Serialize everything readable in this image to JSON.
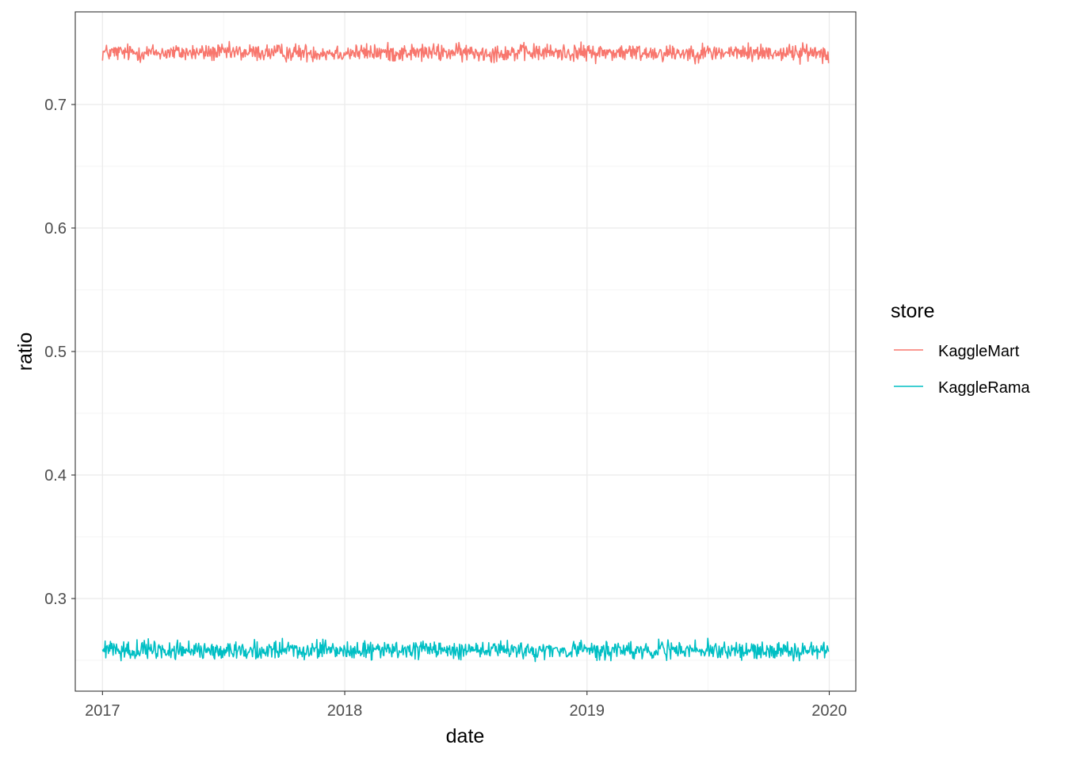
{
  "chart_data": {
    "type": "line",
    "xlabel": "date",
    "ylabel": "ratio",
    "xlim": [
      "2016-11-21",
      "2020-02-10"
    ],
    "ylim": [
      0.225,
      0.775
    ],
    "x_ticks": [
      "2017",
      "2018",
      "2019",
      "2020"
    ],
    "y_ticks": [
      "0.3",
      "0.4",
      "0.5",
      "0.6",
      "0.7"
    ],
    "x_range_dates": [
      "2017-01-01",
      "2019-12-31"
    ],
    "grid": true,
    "legend": {
      "title": "store",
      "position": "right"
    },
    "series": [
      {
        "name": "KaggleMart",
        "color": "#F8766D",
        "mean": 0.742,
        "noise": 0.0035,
        "min": 0.731,
        "max": 0.751
      },
      {
        "name": "KaggleRama",
        "color": "#00BFC4",
        "mean": 0.258,
        "noise": 0.0035,
        "min": 0.249,
        "max": 0.269
      }
    ]
  }
}
